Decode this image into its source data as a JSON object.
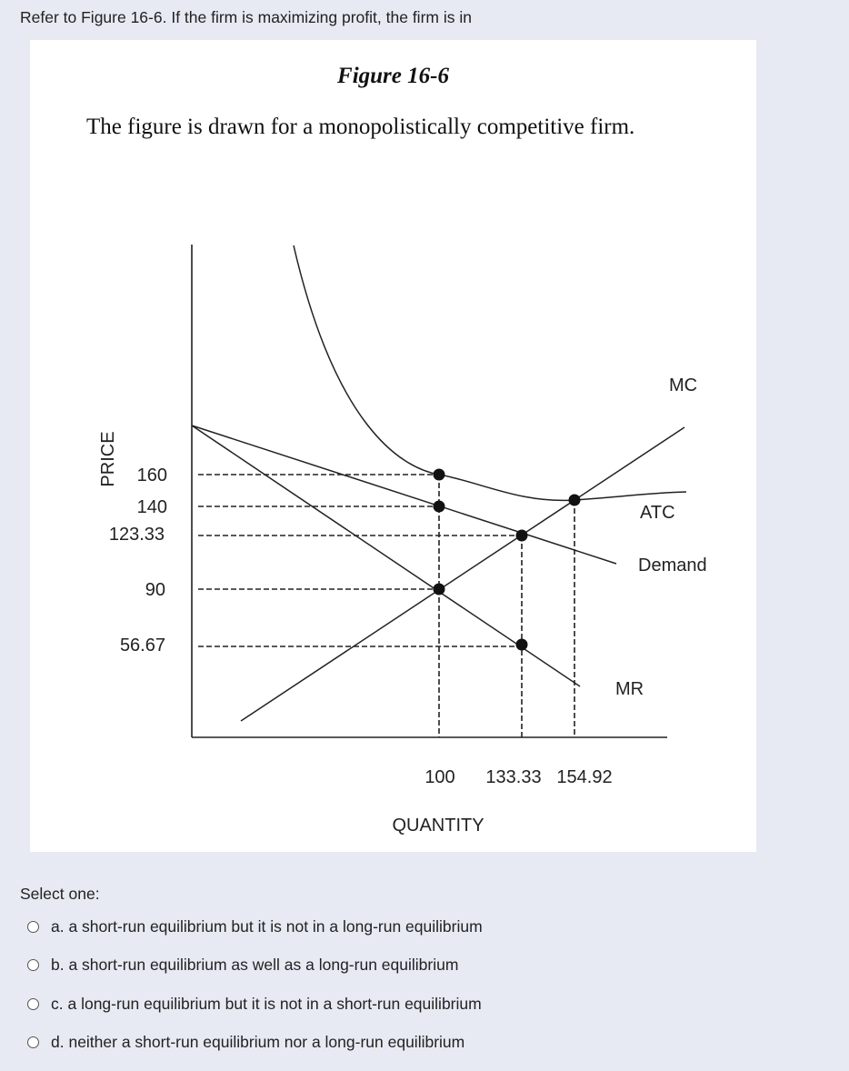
{
  "question": "Refer to Figure 16-6. If the firm is maximizing profit, the firm is in",
  "figure": {
    "title": "Figure 16-6",
    "caption": "The figure is drawn for a monopolistically competitive firm."
  },
  "chart_data": {
    "type": "line",
    "title": "",
    "xlabel": "QUANTITY",
    "ylabel": "PRICE",
    "x_ticks": [
      "100",
      "133.33",
      "154.92"
    ],
    "y_ticks": [
      "160",
      "140",
      "123.33",
      "90",
      "56.67"
    ],
    "curves": [
      {
        "name": "MC",
        "description": "upward sloping",
        "passes": [
          [
            100,
            90
          ],
          [
            133.33,
            123.33
          ],
          [
            154.92,
            140
          ]
        ]
      },
      {
        "name": "ATC",
        "description": "U-shaped",
        "passes": [
          [
            100,
            160
          ],
          [
            154.92,
            140
          ]
        ]
      },
      {
        "name": "Demand",
        "description": "downward sloping",
        "passes": [
          [
            100,
            140
          ],
          [
            133.33,
            123.33
          ]
        ]
      },
      {
        "name": "MR",
        "description": "downward sloping",
        "passes": [
          [
            100,
            90
          ],
          [
            133.33,
            56.67
          ]
        ]
      }
    ],
    "marked_points": [
      {
        "x": 100,
        "y": 160
      },
      {
        "x": 100,
        "y": 140
      },
      {
        "x": 100,
        "y": 90
      },
      {
        "x": 133.33,
        "y": 123.33
      },
      {
        "x": 133.33,
        "y": 56.67
      },
      {
        "x": 154.92,
        "y": 140
      }
    ],
    "dashed_guides": true,
    "grid": false
  },
  "select_label": "Select one:",
  "options": [
    {
      "label": "a. a short-run equilibrium but it is not in a long-run equilibrium"
    },
    {
      "label": "b. a short-run equilibrium as well as a long-run equilibrium"
    },
    {
      "label": "c. a long-run equilibrium but it is not in a short-run equilibrium"
    },
    {
      "label": "d. neither a short-run equilibrium nor a long-run equilibrium"
    }
  ]
}
